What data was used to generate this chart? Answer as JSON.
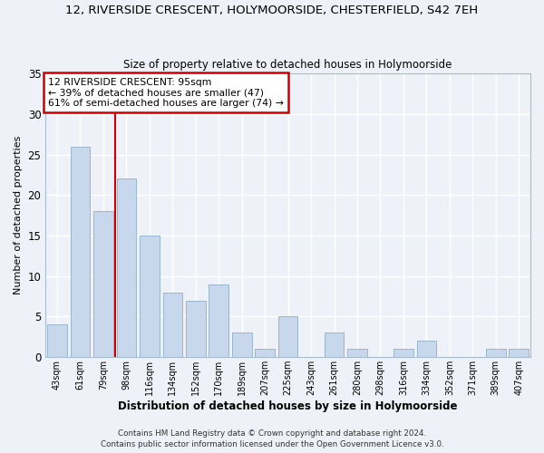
{
  "title": "12, RIVERSIDE CRESCENT, HOLYMOORSIDE, CHESTERFIELD, S42 7EH",
  "subtitle": "Size of property relative to detached houses in Holymoorside",
  "xlabel": "Distribution of detached houses by size in Holymoorside",
  "ylabel": "Number of detached properties",
  "bar_labels": [
    "43sqm",
    "61sqm",
    "79sqm",
    "98sqm",
    "116sqm",
    "134sqm",
    "152sqm",
    "170sqm",
    "189sqm",
    "207sqm",
    "225sqm",
    "243sqm",
    "261sqm",
    "280sqm",
    "298sqm",
    "316sqm",
    "334sqm",
    "352sqm",
    "371sqm",
    "389sqm",
    "407sqm"
  ],
  "bar_values": [
    4,
    26,
    18,
    22,
    15,
    8,
    7,
    9,
    3,
    1,
    5,
    0,
    3,
    1,
    0,
    1,
    2,
    0,
    0,
    1,
    1
  ],
  "bar_color": "#c8d8ec",
  "bar_edgecolor": "#90aec8",
  "vline_color": "#cc0000",
  "annotation_line1": "12 RIVERSIDE CRESCENT: 95sqm",
  "annotation_line2": "← 39% of detached houses are smaller (47)",
  "annotation_line3": "61% of semi-detached houses are larger (74) →",
  "annotation_box_edgecolor": "#cc0000",
  "ylim": [
    0,
    35
  ],
  "yticks": [
    0,
    5,
    10,
    15,
    20,
    25,
    30,
    35
  ],
  "footer1": "Contains HM Land Registry data © Crown copyright and database right 2024.",
  "footer2": "Contains public sector information licensed under the Open Government Licence v3.0.",
  "bg_color": "#eef2f8",
  "grid_color": "#ffffff"
}
